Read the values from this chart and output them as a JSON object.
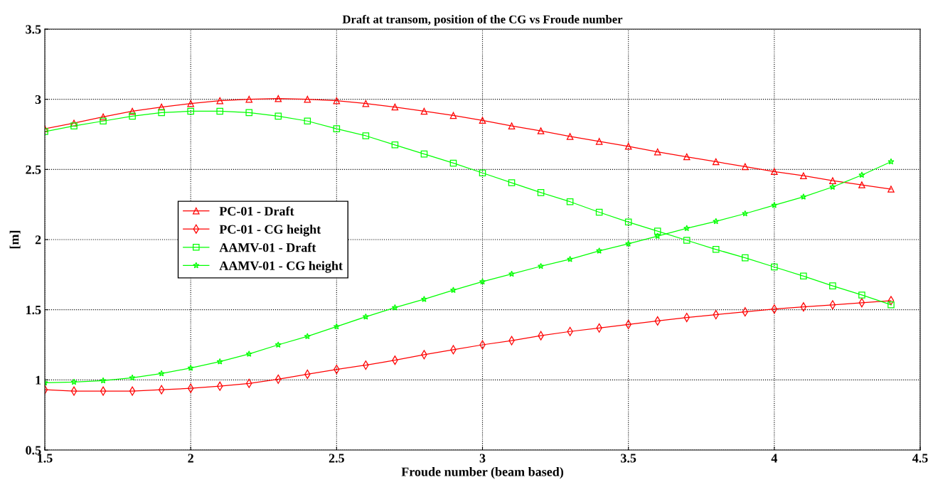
{
  "chart_data": {
    "type": "line",
    "title": "Draft at transom, position of the CG vs Froude number",
    "xlabel": "Froude number (beam based)",
    "ylabel": "[m]",
    "x": [
      1.5,
      1.6,
      1.7,
      1.8,
      1.9,
      2.0,
      2.1,
      2.2,
      2.3,
      2.4,
      2.5,
      2.6,
      2.7,
      2.8,
      2.9,
      3.0,
      3.1,
      3.2,
      3.3,
      3.4,
      3.5,
      3.6,
      3.7,
      3.8,
      3.9,
      4.0,
      4.1,
      4.2,
      4.3,
      4.4
    ],
    "series": [
      {
        "name": "PC-01 - Draft",
        "color": "#ff0000",
        "marker": "triangle",
        "values": [
          2.79,
          2.83,
          2.875,
          2.915,
          2.945,
          2.97,
          2.99,
          3.0,
          3.005,
          3.0,
          2.99,
          2.97,
          2.945,
          2.915,
          2.885,
          2.85,
          2.81,
          2.775,
          2.735,
          2.7,
          2.665,
          2.625,
          2.59,
          2.555,
          2.52,
          2.485,
          2.455,
          2.42,
          2.39,
          2.36
        ]
      },
      {
        "name": "PC-01 - CG height",
        "color": "#ff0000",
        "marker": "diamond",
        "values": [
          0.93,
          0.92,
          0.92,
          0.92,
          0.93,
          0.94,
          0.955,
          0.975,
          1.005,
          1.04,
          1.075,
          1.105,
          1.14,
          1.18,
          1.215,
          1.25,
          1.28,
          1.315,
          1.345,
          1.37,
          1.395,
          1.42,
          1.445,
          1.465,
          1.485,
          1.505,
          1.52,
          1.535,
          1.55,
          1.565
        ]
      },
      {
        "name": "AAMV-01 - Draft",
        "color": "#00ff00",
        "marker": "square",
        "values": [
          2.77,
          2.81,
          2.845,
          2.88,
          2.905,
          2.915,
          2.915,
          2.905,
          2.88,
          2.845,
          2.79,
          2.74,
          2.675,
          2.61,
          2.545,
          2.475,
          2.405,
          2.335,
          2.27,
          2.195,
          2.125,
          2.06,
          1.995,
          1.93,
          1.87,
          1.805,
          1.74,
          1.67,
          1.605,
          1.535
        ]
      },
      {
        "name": "AAMV-01 - CG height",
        "color": "#00ff00",
        "marker": "star",
        "values": [
          0.98,
          0.985,
          0.995,
          1.015,
          1.045,
          1.085,
          1.13,
          1.185,
          1.25,
          1.31,
          1.38,
          1.45,
          1.515,
          1.575,
          1.64,
          1.7,
          1.755,
          1.81,
          1.86,
          1.92,
          1.97,
          2.025,
          2.08,
          2.13,
          2.185,
          2.245,
          2.305,
          2.375,
          2.46,
          2.555
        ]
      }
    ],
    "xlim": [
      1.5,
      4.5
    ],
    "xticks": [
      1.5,
      2,
      2.5,
      3,
      3.5,
      4,
      4.5
    ],
    "ylim": [
      0.5,
      3.5
    ],
    "yticks": [
      0.5,
      1,
      1.5,
      2,
      2.5,
      3,
      3.5
    ],
    "grid": true,
    "legend": "center left",
    "line_style": "solid"
  }
}
